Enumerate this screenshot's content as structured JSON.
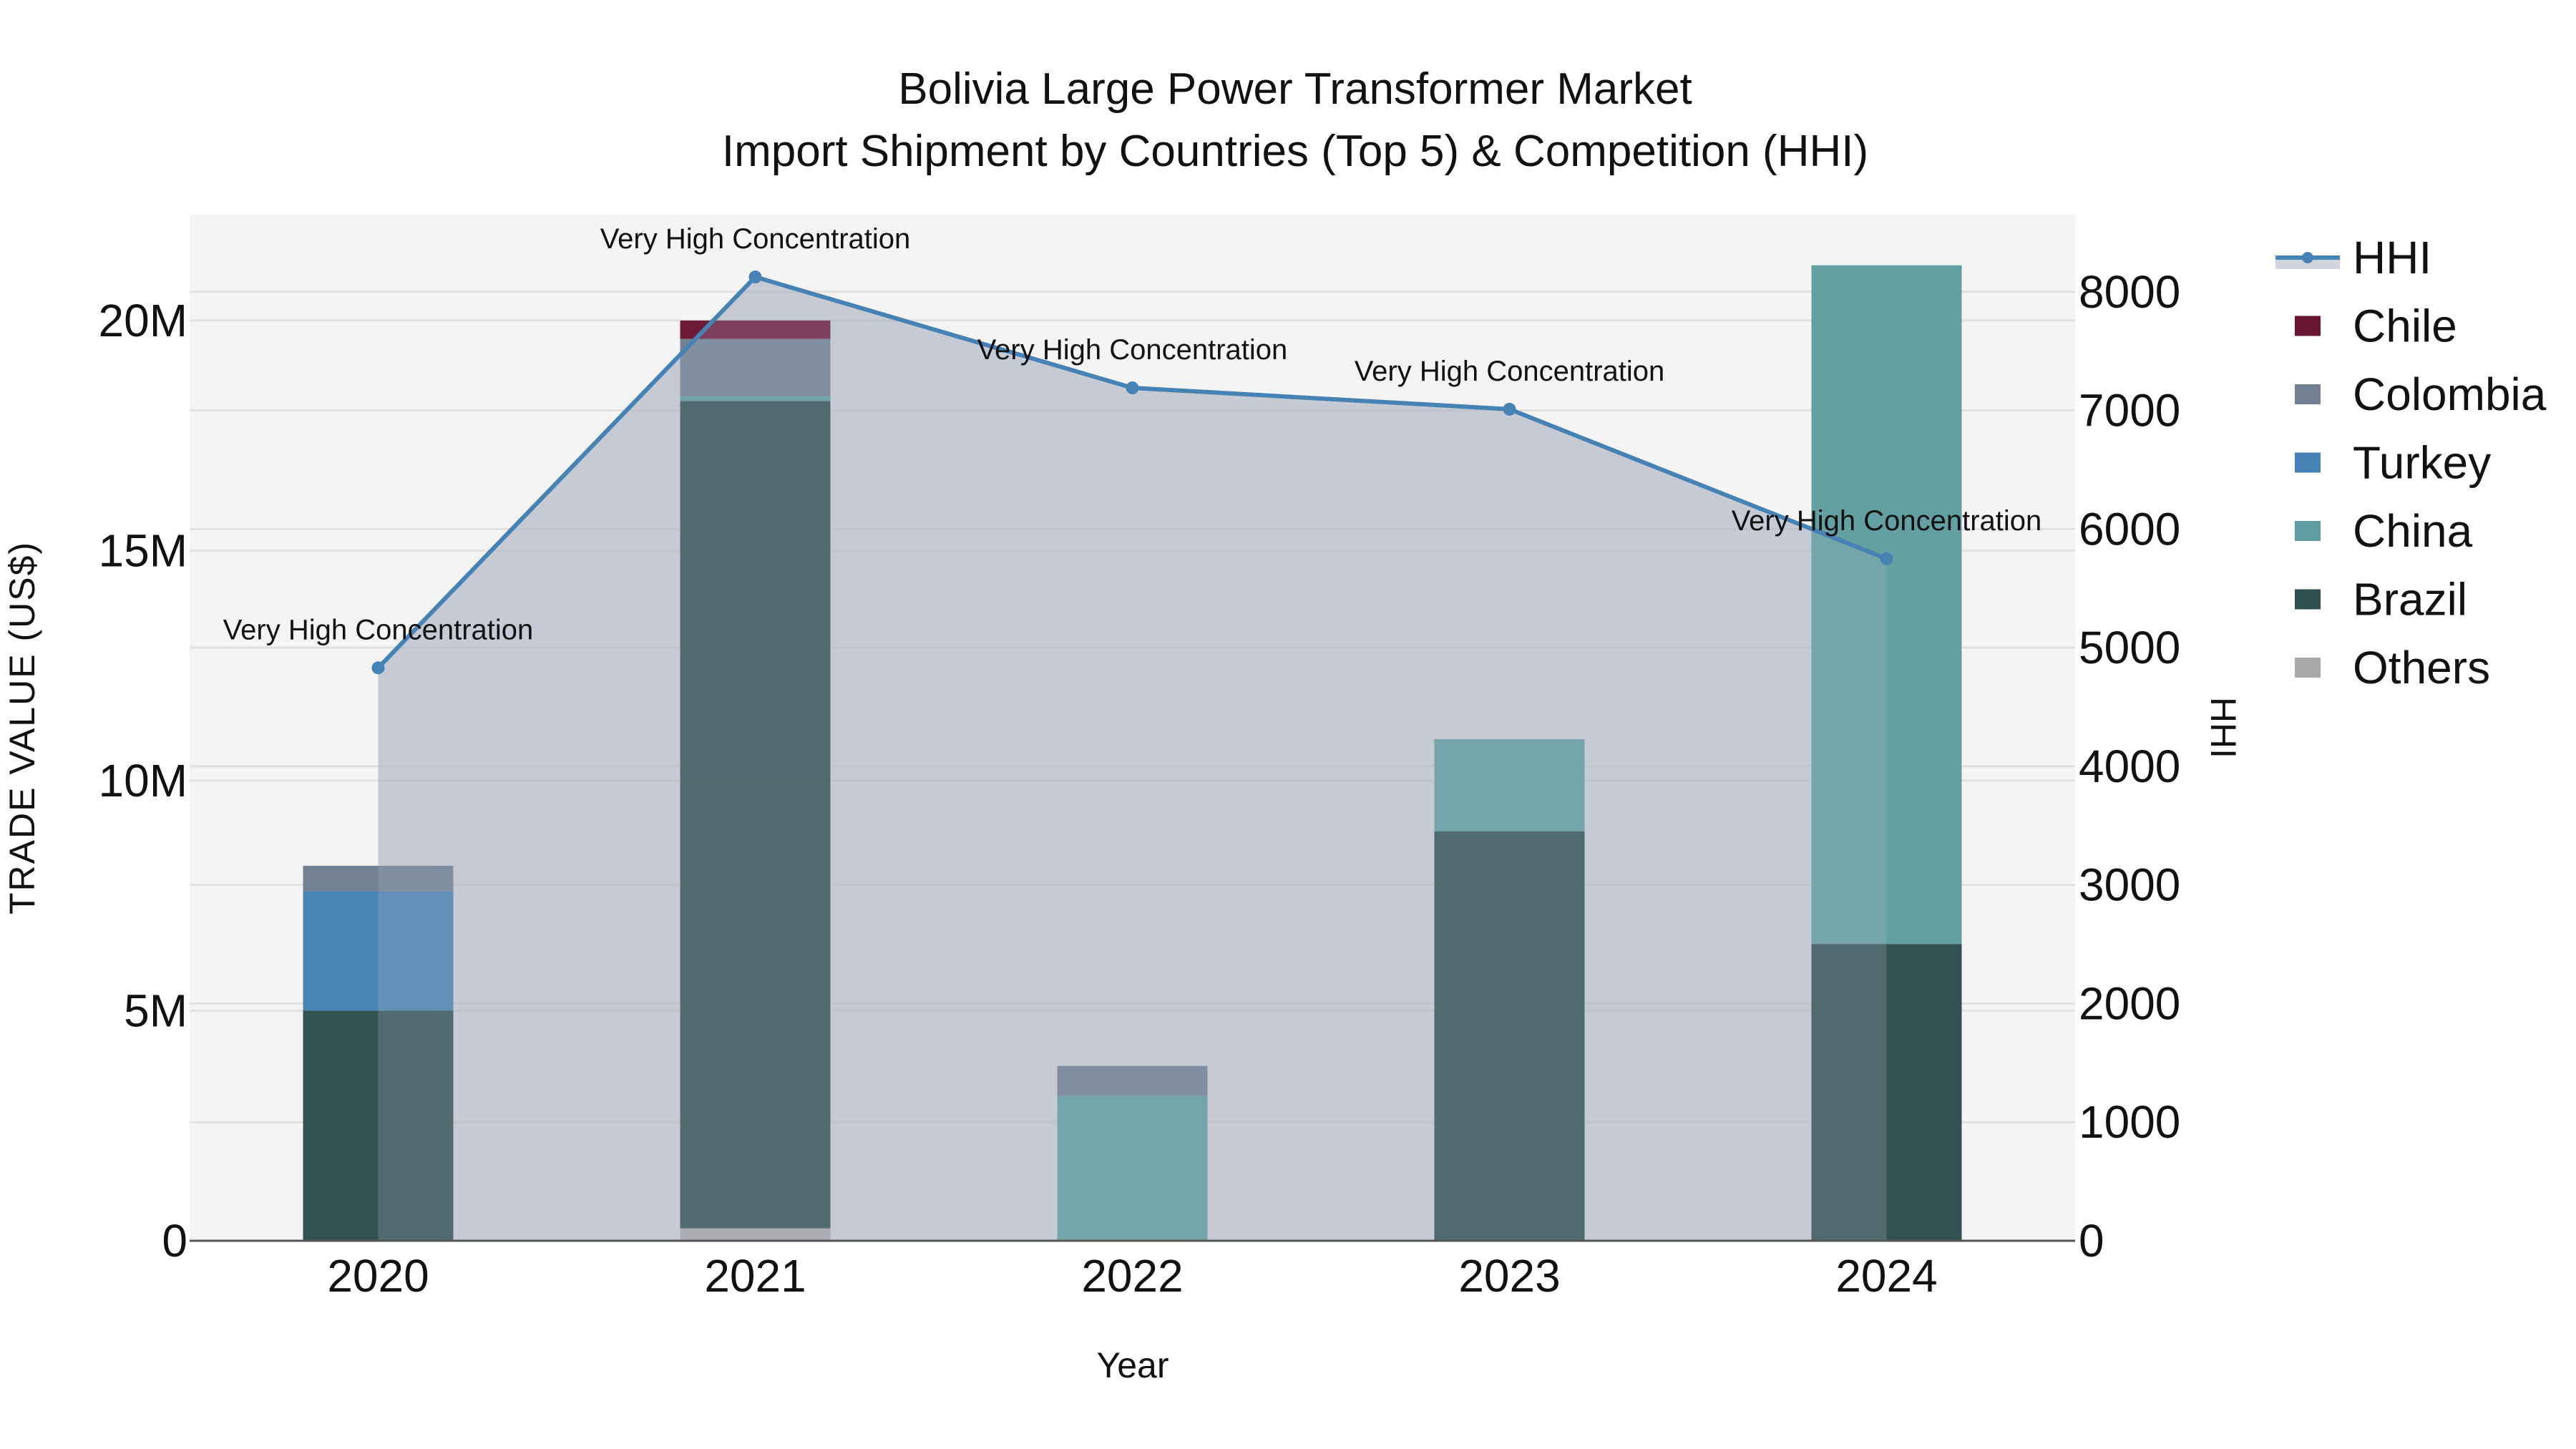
{
  "chart_data": {
    "type": "bar",
    "barmode": "stack",
    "title": "Bolivia Large Power Transformer Market",
    "subtitle": "Import Shipment by Countries (Top 5) & Competition (HHI)",
    "xlabel": "Year",
    "ylabel": "TRADE VALUE (US$)",
    "y2label": "HHI",
    "categories": [
      "2020",
      "2021",
      "2022",
      "2023",
      "2024"
    ],
    "ylim": [
      0,
      22300000
    ],
    "y2lim": [
      0,
      8650
    ],
    "yticks": [
      {
        "v": 0,
        "label": "0"
      },
      {
        "v": 5000000,
        "label": "5M"
      },
      {
        "v": 10000000,
        "label": "10M"
      },
      {
        "v": 15000000,
        "label": "15M"
      },
      {
        "v": 20000000,
        "label": "20M"
      }
    ],
    "y2ticks": [
      0,
      1000,
      2000,
      3000,
      4000,
      5000,
      6000,
      7000,
      8000
    ],
    "grid": true,
    "legend_position": "right",
    "series": [
      {
        "name": "Others",
        "color": "#A9A9A9",
        "values": [
          0,
          270000,
          0,
          0,
          0
        ]
      },
      {
        "name": "Brazil",
        "color": "#2F4F4F",
        "values": [
          5000000,
          17980000,
          0,
          8900000,
          6450000
        ]
      },
      {
        "name": "China",
        "color": "#5F9EA0",
        "values": [
          0,
          100000,
          3150000,
          2000000,
          14750000
        ]
      },
      {
        "name": "Turkey",
        "color": "#4682B4",
        "values": [
          2600000,
          0,
          0,
          0,
          0
        ]
      },
      {
        "name": "Colombia",
        "color": "#708090",
        "values": [
          550000,
          1250000,
          650000,
          0,
          0
        ]
      },
      {
        "name": "Chile",
        "color": "#6B1535",
        "values": [
          0,
          400000,
          0,
          0,
          0
        ]
      }
    ],
    "line_series": {
      "name": "HHI",
      "color": "#4682B4",
      "fill_color": "rgba(176,184,198,0.6)",
      "axis": "y2",
      "values": [
        4830,
        8125,
        7190,
        7010,
        5750
      ],
      "annotations": [
        "Very High Concentration",
        "Very High Concentration",
        "Very High Concentration",
        "Very High Concentration",
        "Very High Concentration"
      ]
    }
  },
  "legend": {
    "items": [
      {
        "label": "HHI",
        "kind": "line",
        "color": "#4682B4"
      },
      {
        "label": "Chile",
        "kind": "box",
        "color": "#6B1535"
      },
      {
        "label": "Colombia",
        "kind": "box",
        "color": "#708090"
      },
      {
        "label": "Turkey",
        "kind": "box",
        "color": "#4682B4"
      },
      {
        "label": "China",
        "kind": "box",
        "color": "#5F9EA0"
      },
      {
        "label": "Brazil",
        "kind": "box",
        "color": "#2F4F4F"
      },
      {
        "label": "Others",
        "kind": "box",
        "color": "#A9A9A9"
      }
    ]
  },
  "colors": {
    "plot_bg": "#F4F4F4",
    "grid": "#E2E2E2",
    "axis_line": "#555555"
  }
}
